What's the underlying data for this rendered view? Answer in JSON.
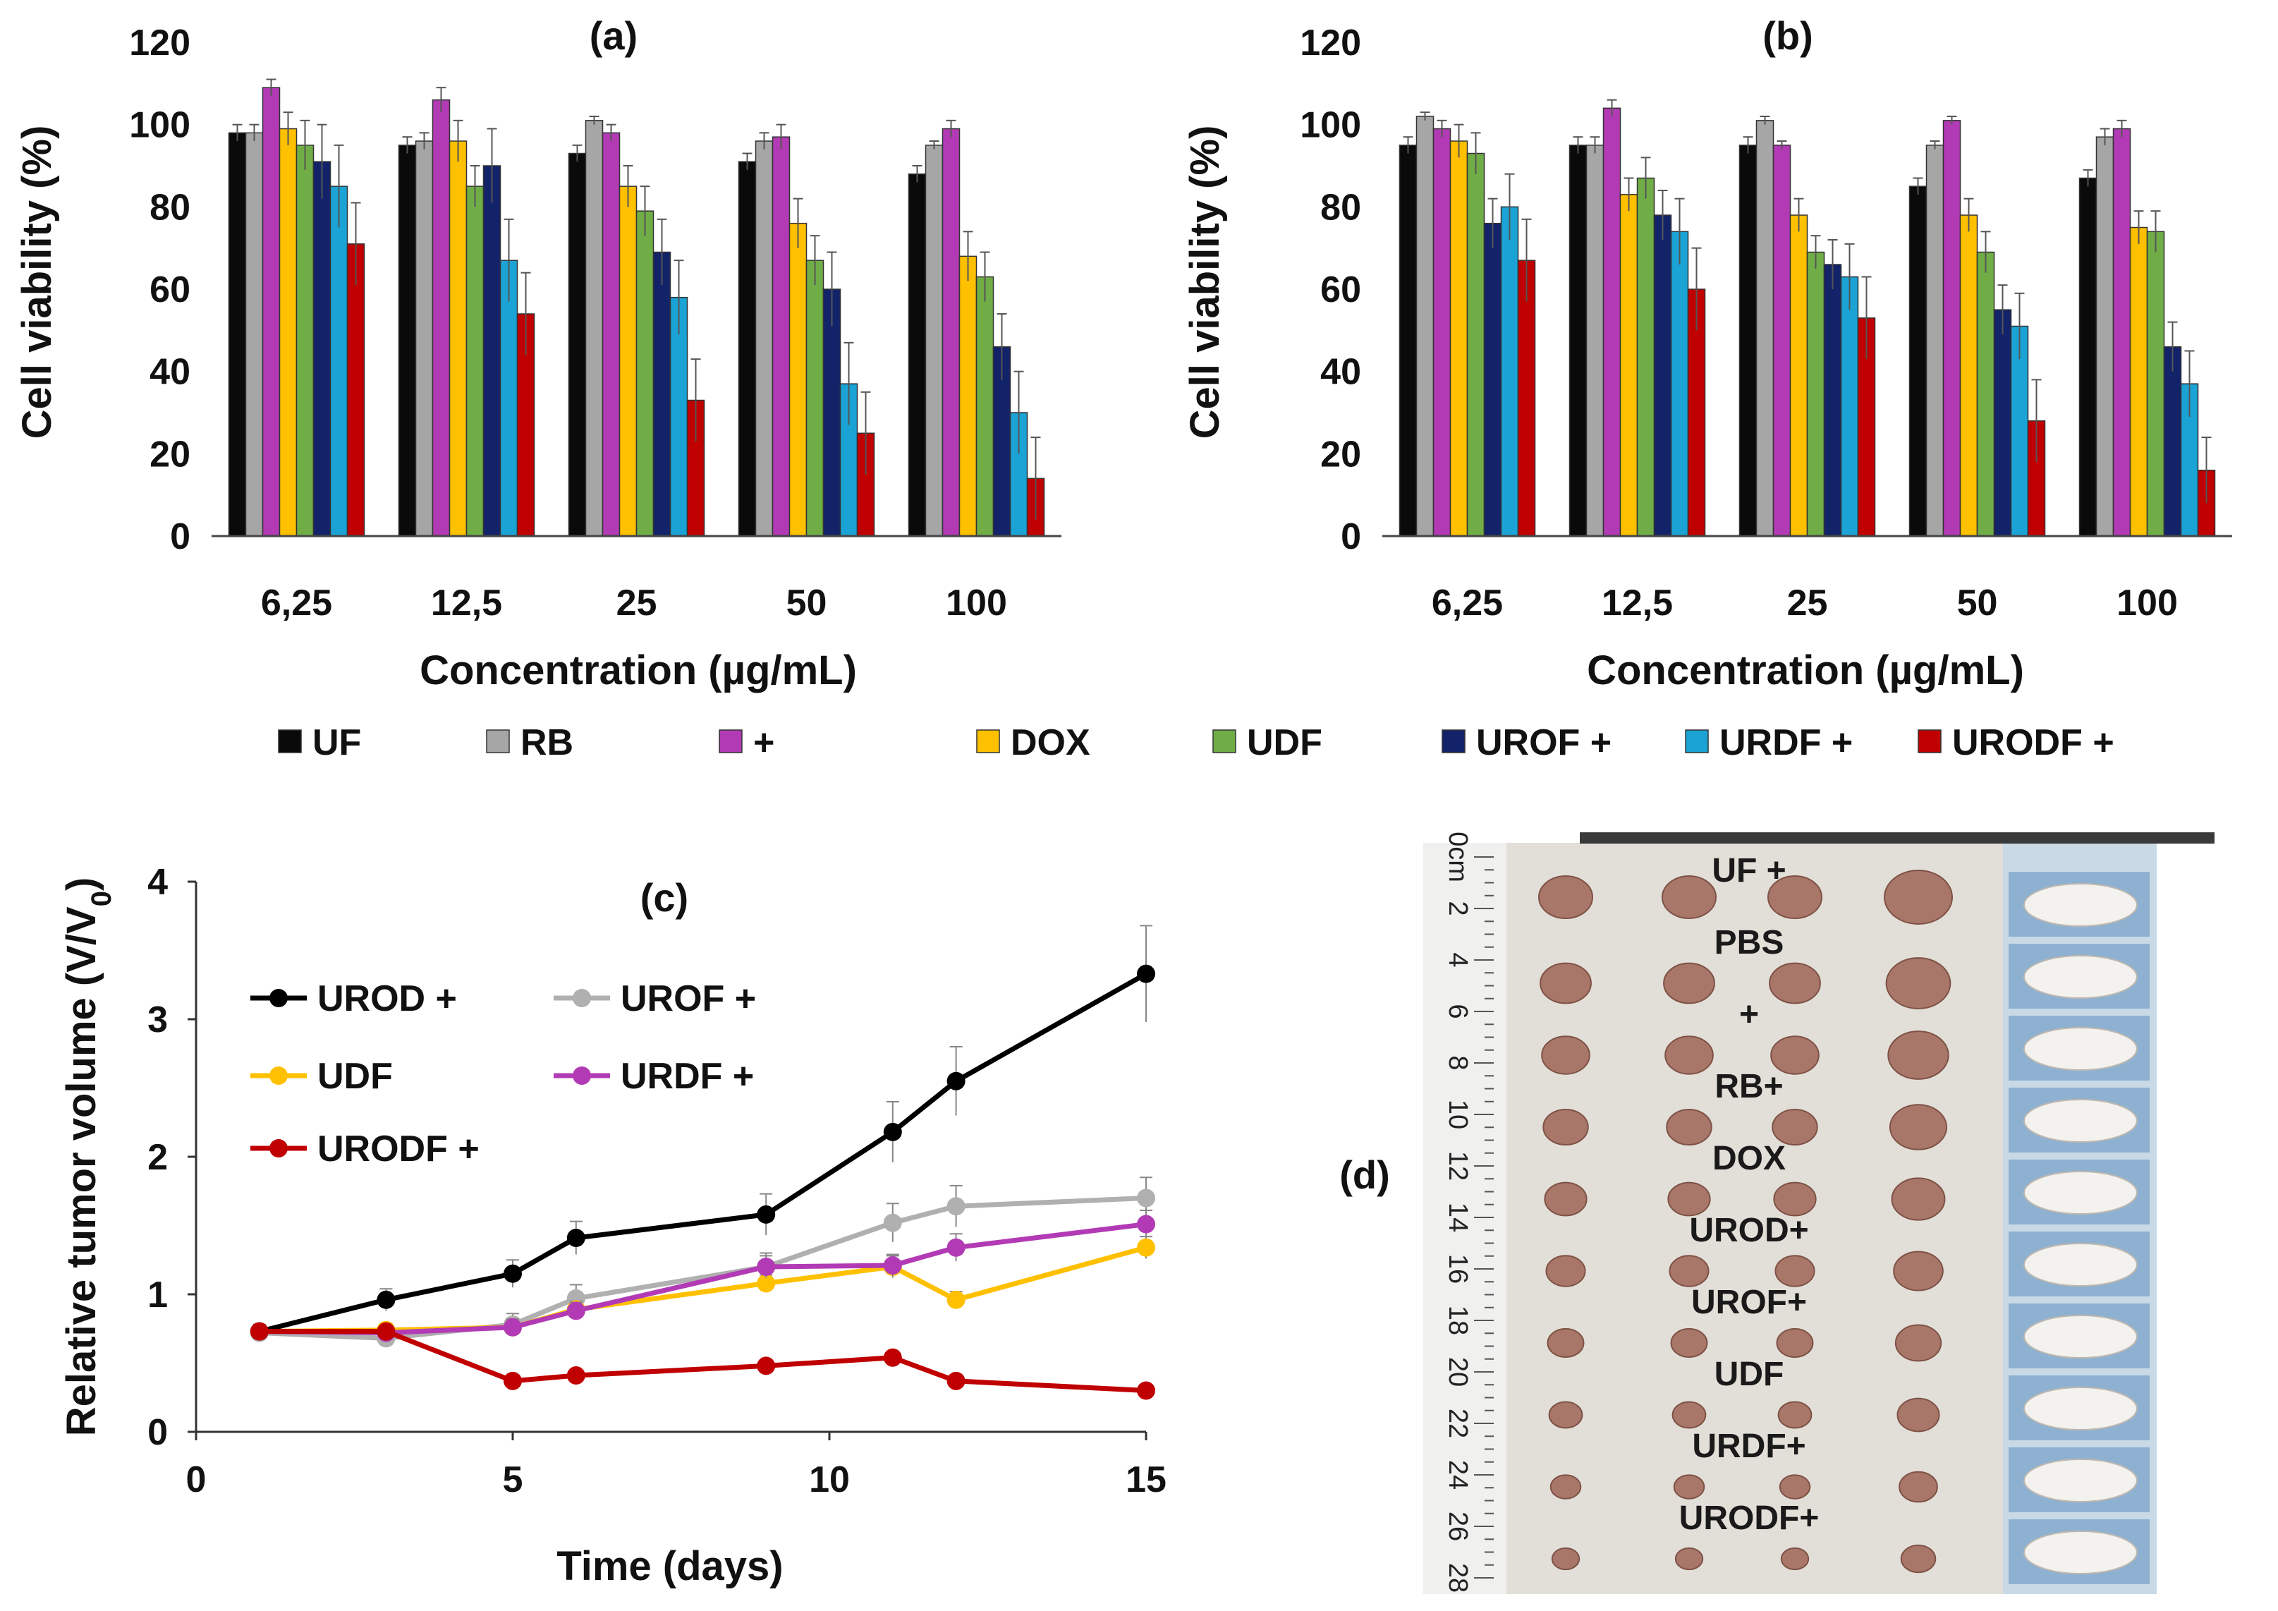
{
  "chart_data": [
    {
      "type": "bar",
      "panel": "(a)",
      "ylabel": "Cell viability (%)",
      "xlabel": "Concentration (µg/mL)",
      "ylim": [
        0,
        120
      ],
      "yticks": [
        "0",
        "20",
        "40",
        "60",
        "80",
        "100",
        "120"
      ],
      "categories": [
        "6,25",
        "12,5",
        "25",
        "50",
        "100"
      ],
      "series": [
        {
          "name": "UF",
          "color": "#0a0a0a",
          "values": [
            98,
            95,
            93,
            91,
            88
          ],
          "errors": [
            2,
            2,
            2,
            2,
            2
          ]
        },
        {
          "name": "RB",
          "color": "#a6a6a6",
          "values": [
            98,
            96,
            101,
            96,
            95
          ],
          "errors": [
            2,
            2,
            1,
            2,
            1
          ]
        },
        {
          "name": "+",
          "color": "#b23bb5",
          "values": [
            109,
            106,
            98,
            97,
            99
          ],
          "errors": [
            2,
            3,
            2,
            3,
            2
          ]
        },
        {
          "name": "DOX",
          "color": "#ffc000",
          "values": [
            99,
            96,
            85,
            76,
            68
          ],
          "errors": [
            4,
            5,
            5,
            6,
            6
          ]
        },
        {
          "name": "UDF",
          "color": "#70ad47",
          "values": [
            95,
            85,
            79,
            67,
            63
          ],
          "errors": [
            6,
            5,
            6,
            6,
            6
          ]
        },
        {
          "name": "UROF +",
          "color": "#12236a",
          "values": [
            91,
            90,
            69,
            60,
            46
          ],
          "errors": [
            9,
            9,
            8,
            9,
            8
          ]
        },
        {
          "name": "URDF +",
          "color": "#1aa3d4",
          "values": [
            85,
            67,
            58,
            37,
            30
          ],
          "errors": [
            10,
            10,
            9,
            10,
            10
          ]
        },
        {
          "name": "URODF +",
          "color": "#c00000",
          "values": [
            71,
            54,
            33,
            25,
            14
          ],
          "errors": [
            10,
            10,
            10,
            10,
            10
          ]
        }
      ]
    },
    {
      "type": "bar",
      "panel": "(b)",
      "ylabel": "Cell viability (%)",
      "xlabel": "Concentration (µg/mL)",
      "ylim": [
        0,
        120
      ],
      "yticks": [
        "0",
        "20",
        "40",
        "60",
        "80",
        "100",
        "120"
      ],
      "categories": [
        "6,25",
        "12,5",
        "25",
        "50",
        "100"
      ],
      "series": [
        {
          "name": "UF",
          "color": "#0a0a0a",
          "values": [
            95,
            95,
            95,
            85,
            87
          ],
          "errors": [
            2,
            2,
            2,
            2,
            2
          ]
        },
        {
          "name": "RB",
          "color": "#a6a6a6",
          "values": [
            102,
            95,
            101,
            95,
            97
          ],
          "errors": [
            1,
            2,
            1,
            1,
            2
          ]
        },
        {
          "name": "+",
          "color": "#b23bb5",
          "values": [
            99,
            104,
            95,
            101,
            99
          ],
          "errors": [
            2,
            2,
            1,
            1,
            2
          ]
        },
        {
          "name": "DOX",
          "color": "#ffc000",
          "values": [
            96,
            83,
            78,
            78,
            75
          ],
          "errors": [
            4,
            4,
            4,
            4,
            4
          ]
        },
        {
          "name": "UDF",
          "color": "#70ad47",
          "values": [
            93,
            87,
            69,
            69,
            74
          ],
          "errors": [
            5,
            5,
            4,
            5,
            5
          ]
        },
        {
          "name": "UROF +",
          "color": "#12236a",
          "values": [
            76,
            78,
            66,
            55,
            46
          ],
          "errors": [
            6,
            6,
            6,
            6,
            6
          ]
        },
        {
          "name": "URDF +",
          "color": "#1aa3d4",
          "values": [
            80,
            74,
            63,
            51,
            37
          ],
          "errors": [
            8,
            8,
            8,
            8,
            8
          ]
        },
        {
          "name": "URODF +",
          "color": "#c00000",
          "values": [
            67,
            60,
            53,
            28,
            16
          ],
          "errors": [
            10,
            10,
            10,
            10,
            8
          ]
        }
      ]
    },
    {
      "type": "line",
      "panel": "(c)",
      "xlabel": "Time (days)",
      "ylabel": "Relative tumor volume (V/V0)",
      "ylabel_main": "Relative tumor volume (V/V",
      "ylabel_sub": "0",
      "ylabel_end": ")",
      "xlim": [
        0,
        15
      ],
      "ylim": [
        0,
        4
      ],
      "xticks": [
        "0",
        "5",
        "10",
        "15"
      ],
      "yticks": [
        "0",
        "1",
        "2",
        "3",
        "4"
      ],
      "x": [
        1,
        3,
        5,
        6,
        9,
        11,
        12,
        15
      ],
      "series": [
        {
          "name": "UROD +",
          "color": "#000000",
          "values": [
            0.73,
            0.96,
            1.15,
            1.41,
            1.58,
            2.18,
            2.55,
            3.33
          ],
          "errors": [
            0.05,
            0.08,
            0.1,
            0.12,
            0.15,
            0.22,
            0.25,
            0.35
          ]
        },
        {
          "name": "UROF +",
          "color": "#b0b0b0",
          "values": [
            0.72,
            0.68,
            0.78,
            0.97,
            1.2,
            1.52,
            1.64,
            1.7
          ],
          "errors": [
            0.05,
            0.05,
            0.08,
            0.1,
            0.1,
            0.14,
            0.15,
            0.15
          ]
        },
        {
          "name": "UDF",
          "color": "#ffc000",
          "values": [
            0.73,
            0.74,
            0.76,
            0.89,
            1.08,
            1.2,
            0.96,
            1.34
          ],
          "errors": [
            0.05,
            0.05,
            0.06,
            0.06,
            0.06,
            0.08,
            0.06,
            0.08
          ]
        },
        {
          "name": "URDF +",
          "color": "#b23bb5",
          "values": [
            0.73,
            0.72,
            0.76,
            0.88,
            1.2,
            1.21,
            1.34,
            1.51
          ],
          "errors": [
            0.05,
            0.05,
            0.06,
            0.06,
            0.08,
            0.08,
            0.1,
            0.1
          ]
        },
        {
          "name": "URODF +",
          "color": "#c00000",
          "values": [
            0.73,
            0.73,
            0.37,
            0.41,
            0.48,
            0.54,
            0.37,
            0.3
          ],
          "errors": [
            0.03,
            0.03,
            0.03,
            0.03,
            0.03,
            0.03,
            0.03,
            0.03
          ]
        }
      ]
    }
  ],
  "legend_ab": [
    "UF",
    "RB",
    "+",
    "DOX",
    "UDF",
    "UROF +",
    "URDF +",
    "URODF +"
  ],
  "photo": {
    "panel": "(d)",
    "groups": [
      "UF +",
      "PBS",
      "+",
      "RB+",
      "DOX",
      "UROD+",
      "UROF+",
      "UDF",
      "URDF+",
      "URODF+"
    ],
    "ruler_labels": [
      "0cm",
      "2",
      "4",
      "6",
      "8",
      "10",
      "12",
      "14",
      "16",
      "18",
      "20",
      "22",
      "24",
      "26",
      "28"
    ]
  }
}
